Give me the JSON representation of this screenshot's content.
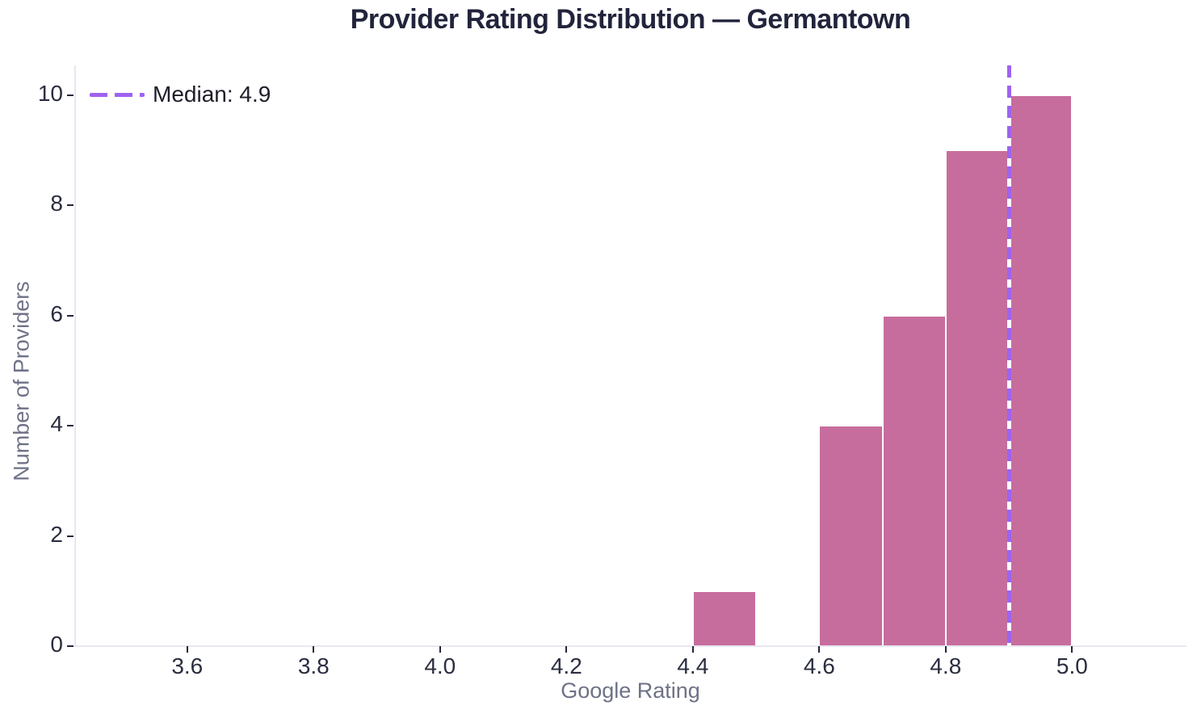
{
  "title": "Provider Rating Distribution — Germantown",
  "legend": {
    "label": "Median: 4.9"
  },
  "chart_data": {
    "type": "bar",
    "subtype": "histogram",
    "title": "Provider Rating Distribution — Germantown",
    "xlabel": "Google Rating",
    "ylabel": "Number of Providers",
    "bins": [
      {
        "x0": 4.4,
        "x1": 4.5,
        "count": 1
      },
      {
        "x0": 4.5,
        "x1": 4.6,
        "count": 0
      },
      {
        "x0": 4.6,
        "x1": 4.7,
        "count": 4
      },
      {
        "x0": 4.7,
        "x1": 4.8,
        "count": 6
      },
      {
        "x0": 4.8,
        "x1": 4.9,
        "count": 9
      },
      {
        "x0": 4.9,
        "x1": 5.0,
        "count": 10
      }
    ],
    "median_line": {
      "value": 4.9,
      "label": "Median: 4.9",
      "style": "dashed"
    },
    "x_ticks": {
      "values": [
        3.6,
        3.8,
        4.0,
        4.2,
        4.4,
        4.6,
        4.8,
        5.0
      ],
      "labels": [
        "3.6",
        "3.8",
        "4.0",
        "4.2",
        "4.4",
        "4.6",
        "4.8",
        "5.0"
      ]
    },
    "y_ticks": {
      "values": [
        0,
        2,
        4,
        6,
        8,
        10
      ],
      "labels": [
        "0",
        "2",
        "4",
        "6",
        "8",
        "10"
      ]
    },
    "xlim": [
      3.422,
      5.181
    ],
    "ylim": [
      0,
      10.54
    ],
    "grid": false,
    "legend_position": "upper left",
    "colors": {
      "bar_fill": "#c76d9d",
      "bar_edge": "#ffffff",
      "median_line": "#9e63f0",
      "axis_line": "#e8e7f2",
      "tick_mark": "#23263a",
      "tick_label": "#2b2e40",
      "axis_label": "#6e7287",
      "title": "#22243c",
      "legend_text": "#1d1e28",
      "background": "#ffffff"
    }
  }
}
